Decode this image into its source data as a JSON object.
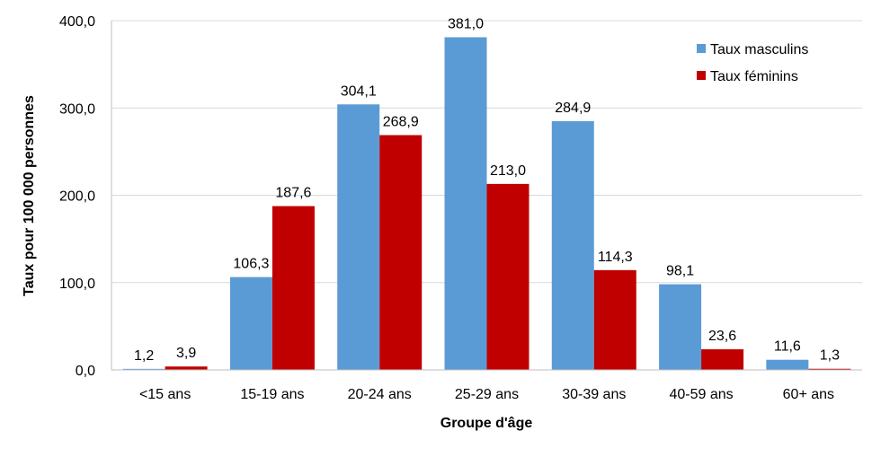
{
  "chart_data": {
    "type": "bar",
    "xlabel": "Groupe d'âge",
    "ylabel": "Taux pour 100 000 personnes",
    "ylim": [
      0,
      400
    ],
    "yticks": [
      0,
      100,
      200,
      300,
      400
    ],
    "ytick_labels": [
      "0,0",
      "100,0",
      "200,0",
      "300,0",
      "400,0"
    ],
    "categories": [
      "<15 ans",
      "15-19 ans",
      "20-24 ans",
      "25-29 ans",
      "30-39 ans",
      "40-59 ans",
      "60+ ans"
    ],
    "series": [
      {
        "name": "Taux masculins",
        "color": "#5b9bd5",
        "values": [
          1.2,
          106.3,
          304.1,
          381.0,
          284.9,
          98.1,
          11.6
        ],
        "labels": [
          "1,2",
          "106,3",
          "304,1",
          "381,0",
          "284,9",
          "98,1",
          "11,6"
        ]
      },
      {
        "name": "Taux féminins",
        "color": "#c00000",
        "values": [
          3.9,
          187.6,
          268.9,
          213.0,
          114.3,
          23.6,
          1.3
        ],
        "labels": [
          "3,9",
          "187,6",
          "268,9",
          "213,0",
          "114,3",
          "23,6",
          "1,3"
        ]
      }
    ],
    "grid": true,
    "legend_position": "top-right"
  }
}
